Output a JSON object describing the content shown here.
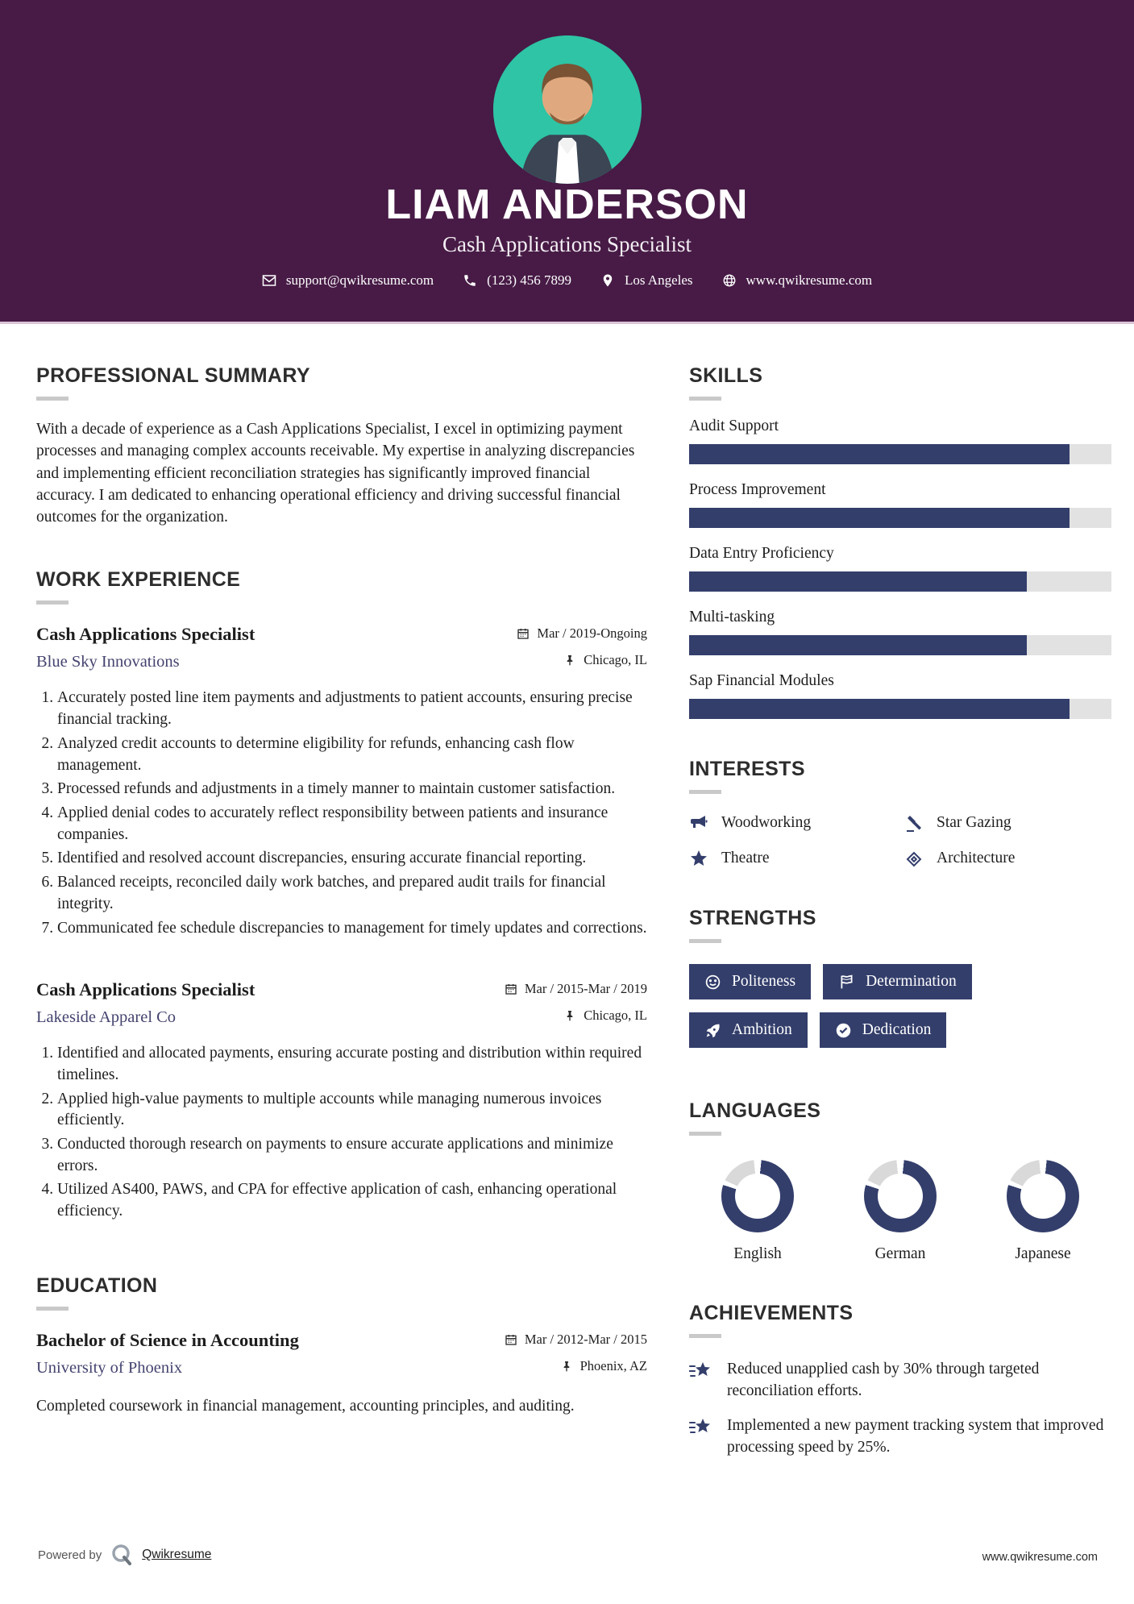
{
  "header": {
    "name": "LIAM ANDERSON",
    "title": "Cash Applications Specialist",
    "contact": {
      "email": "support@qwikresume.com",
      "phone": "(123) 456 7899",
      "location": "Los Angeles",
      "website": "www.qwikresume.com"
    }
  },
  "summary": {
    "heading": "PROFESSIONAL SUMMARY",
    "text": "With a decade of experience as a Cash Applications Specialist, I excel in optimizing payment processes and managing complex accounts receivable. My expertise in analyzing discrepancies and implementing efficient reconciliation strategies has significantly improved financial accuracy. I am dedicated to enhancing operational efficiency and driving successful financial outcomes for the organization."
  },
  "work": {
    "heading": "WORK EXPERIENCE",
    "jobs": [
      {
        "title": "Cash Applications Specialist",
        "company": "Blue Sky Innovations",
        "dates": "Mar / 2019-Ongoing",
        "location": "Chicago, IL",
        "bullets": [
          "Accurately posted line item payments and adjustments to patient accounts, ensuring precise financial tracking.",
          "Analyzed credit accounts to determine eligibility for refunds, enhancing cash flow management.",
          "Processed refunds and adjustments in a timely manner to maintain customer satisfaction.",
          "Applied denial codes to accurately reflect responsibility between patients and insurance companies.",
          "Identified and resolved account discrepancies, ensuring accurate financial reporting.",
          "Balanced receipts, reconciled daily work batches, and prepared audit trails for financial integrity.",
          "Communicated fee schedule discrepancies to management for timely updates and corrections."
        ]
      },
      {
        "title": "Cash Applications Specialist",
        "company": "Lakeside Apparel Co",
        "dates": "Mar / 2015-Mar / 2019",
        "location": "Chicago, IL",
        "bullets": [
          "Identified and allocated payments, ensuring accurate posting and distribution within required timelines.",
          "Applied high-value payments to multiple accounts while managing numerous invoices efficiently.",
          "Conducted thorough research on payments to ensure accurate applications and minimize errors.",
          "Utilized AS400, PAWS, and CPA for effective application of cash, enhancing operational efficiency."
        ]
      }
    ]
  },
  "education": {
    "heading": "EDUCATION",
    "degree": "Bachelor of Science in Accounting",
    "school": "University of Phoenix",
    "dates": "Mar / 2012-Mar / 2015",
    "location": "Phoenix, AZ",
    "description": "Completed coursework in financial management, accounting principles, and auditing."
  },
  "skills": {
    "heading": "SKILLS",
    "items": [
      {
        "label": "Audit Support",
        "percent": 90
      },
      {
        "label": "Process Improvement",
        "percent": 90
      },
      {
        "label": "Data Entry Proficiency",
        "percent": 80
      },
      {
        "label": "Multi-tasking",
        "percent": 80
      },
      {
        "label": "Sap Financial Modules",
        "percent": 90
      }
    ]
  },
  "interests": {
    "heading": "INTERESTS",
    "items": [
      {
        "label": "Woodworking",
        "icon": "megaphone-icon"
      },
      {
        "label": "Star Gazing",
        "icon": "gavel-icon"
      },
      {
        "label": "Theatre",
        "icon": "star-icon"
      },
      {
        "label": "Architecture",
        "icon": "ticket-icon"
      }
    ]
  },
  "strengths": {
    "heading": "STRENGTHS",
    "items": [
      {
        "label": "Politeness",
        "icon": "smiley-icon"
      },
      {
        "label": "Determination",
        "icon": "flag-icon"
      },
      {
        "label": "Ambition",
        "icon": "rocket-icon"
      },
      {
        "label": "Dedication",
        "icon": "check-circle-icon"
      }
    ]
  },
  "languages": {
    "heading": "LANGUAGES",
    "items": [
      {
        "label": "English",
        "percent": 80
      },
      {
        "label": "German",
        "percent": 80
      },
      {
        "label": "Japanese",
        "percent": 80
      }
    ]
  },
  "achievements": {
    "heading": "ACHIEVEMENTS",
    "items": [
      "Reduced unapplied cash by 30% through targeted reconciliation efforts.",
      "Implemented a new payment tracking system that improved processing speed by 25%."
    ]
  },
  "footer": {
    "powered_by": "Powered by",
    "brand": "Qwikresume",
    "website": "www.qwikresume.com"
  },
  "colors": {
    "header_bg": "#471b46",
    "accent_navy": "#333e6b",
    "photo_bg": "#2ec4a5",
    "bar_track": "#e2e2e2",
    "donut_rest": "#d9d9d9",
    "link": "#44436f"
  }
}
